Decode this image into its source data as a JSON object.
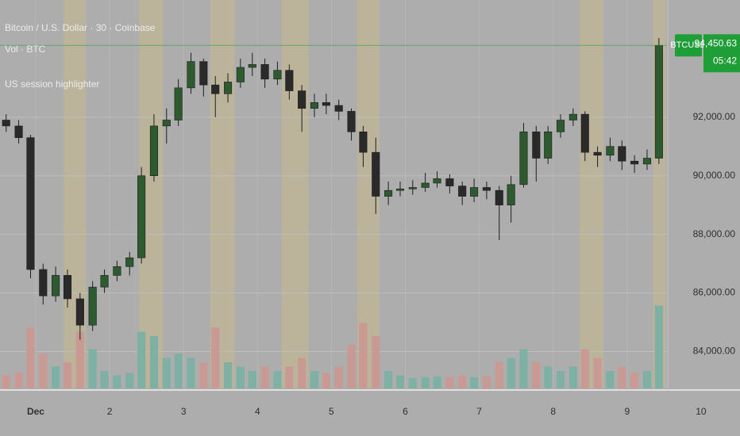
{
  "chart_data": {
    "type": "candlestick",
    "title": "Bitcoin / U.S. Dollar · 30 · Coinbase",
    "volume_label": "Vol · BTC",
    "indicator_label": "US session highlighter",
    "symbol": "BTCUSD",
    "last_price": {
      "value": 94450.63,
      "label": "94,450.63"
    },
    "countdown": "05:42",
    "xlim": [
      0.517,
      10.527
    ],
    "xticks": [
      {
        "value": 1,
        "label": "Dec"
      },
      2,
      3,
      4,
      5,
      6,
      7,
      8,
      9,
      10
    ],
    "ylim": [
      82740,
      96000
    ],
    "yticks": [
      {
        "value": 92000,
        "label": "92,000.00"
      },
      {
        "value": 90000,
        "label": "90,000.00"
      },
      {
        "value": 88000,
        "label": "88,000.00"
      },
      {
        "value": 86000,
        "label": "86,000.00"
      },
      {
        "value": 84000,
        "label": "84,000.00"
      }
    ],
    "grid": true,
    "up_color": "#2d5a2f",
    "down_color": "#2a2a2a",
    "vol_up_color": "#7fb0a4",
    "vol_down_color": "#c99a94",
    "highlight_color": "#bdb596",
    "last_price_color": "#1f9d36",
    "vol_ylim": [
      0,
      1000
    ],
    "highlight_ranges": [
      [
        1.38,
        1.68
      ],
      [
        2.4,
        2.72
      ],
      [
        3.36,
        3.69
      ],
      [
        4.33,
        4.69
      ],
      [
        5.35,
        5.65
      ],
      [
        8.36,
        8.68
      ],
      [
        9.35,
        9.52
      ]
    ],
    "x": [
      0.6,
      0.77,
      0.93,
      1.1,
      1.27,
      1.43,
      1.6,
      1.77,
      1.93,
      2.1,
      2.27,
      2.43,
      2.6,
      2.77,
      2.93,
      3.1,
      3.27,
      3.43,
      3.6,
      3.77,
      3.93,
      4.1,
      4.27,
      4.43,
      4.6,
      4.77,
      4.93,
      5.1,
      5.27,
      5.43,
      5.6,
      5.77,
      5.93,
      6.1,
      6.27,
      6.43,
      6.6,
      6.77,
      6.93,
      7.1,
      7.27,
      7.43,
      7.6,
      7.77,
      7.93,
      8.1,
      8.27,
      8.43,
      8.6,
      8.77,
      8.93,
      9.1,
      9.27,
      9.43
    ],
    "open": [
      91900,
      91700,
      91300,
      86800,
      85900,
      86600,
      85800,
      84900,
      86200,
      86600,
      86900,
      87200,
      90000,
      91700,
      91900,
      93000,
      93900,
      93100,
      92800,
      93200,
      93700,
      93800,
      93300,
      93600,
      92900,
      92300,
      92500,
      92400,
      92200,
      91500,
      90800,
      89300,
      89500,
      89550,
      89600,
      89750,
      89900,
      89650,
      89300,
      89600,
      89500,
      89000,
      89700,
      91500,
      90600,
      91500,
      91900,
      92100,
      90800,
      90700,
      91000,
      90500,
      90400,
      90600
    ],
    "high": [
      92100,
      91900,
      91400,
      87000,
      86900,
      86800,
      86000,
      86400,
      86800,
      87100,
      87400,
      90300,
      92100,
      92300,
      93300,
      94200,
      94000,
      93400,
      93500,
      94000,
      94200,
      94000,
      93900,
      93800,
      93100,
      92800,
      92800,
      92600,
      92300,
      91700,
      91300,
      89800,
      89800,
      89850,
      90100,
      90150,
      90050,
      89800,
      89900,
      89800,
      89650,
      90000,
      91800,
      91700,
      91700,
      92100,
      92300,
      92200,
      91000,
      91300,
      91200,
      90700,
      90900,
      94700
    ],
    "low": [
      91500,
      91100,
      86500,
      85600,
      85700,
      85500,
      84400,
      84700,
      86000,
      86400,
      86600,
      87000,
      89800,
      91100,
      91700,
      92800,
      92700,
      92000,
      92500,
      93000,
      93400,
      93000,
      93100,
      92600,
      91500,
      92000,
      92100,
      91900,
      91200,
      90300,
      88700,
      89000,
      89300,
      89350,
      89450,
      89600,
      89400,
      89000,
      89100,
      89200,
      87800,
      88400,
      89600,
      89800,
      90400,
      91300,
      91700,
      90500,
      90300,
      90500,
      90200,
      90100,
      90200,
      90400
    ],
    "close": [
      91700,
      91300,
      86800,
      85900,
      86600,
      85800,
      84900,
      86200,
      86600,
      86900,
      87200,
      90000,
      91700,
      91900,
      93000,
      93900,
      93100,
      92800,
      93200,
      93700,
      93800,
      93300,
      93600,
      92900,
      92300,
      92500,
      92400,
      92200,
      91500,
      90800,
      89300,
      89500,
      89550,
      89600,
      89750,
      89900,
      89650,
      89300,
      89600,
      89500,
      89000,
      89700,
      91500,
      90600,
      91500,
      91900,
      92100,
      90800,
      90700,
      91000,
      90500,
      90400,
      90600,
      94450.63
    ],
    "volume": [
      150,
      180,
      700,
      400,
      250,
      300,
      650,
      450,
      200,
      150,
      180,
      650,
      600,
      350,
      400,
      350,
      300,
      700,
      300,
      250,
      200,
      250,
      200,
      250,
      350,
      200,
      180,
      250,
      500,
      750,
      600,
      200,
      150,
      120,
      130,
      140,
      130,
      150,
      130,
      140,
      300,
      350,
      450,
      300,
      250,
      200,
      250,
      450,
      350,
      200,
      250,
      180,
      200,
      950
    ]
  }
}
